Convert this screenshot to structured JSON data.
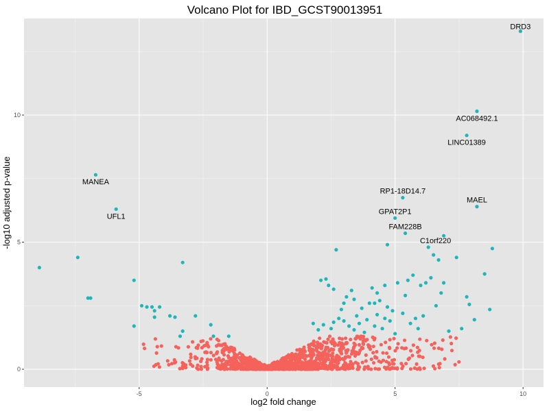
{
  "chart_data": {
    "type": "scatter",
    "title": "Volcano Plot for IBD_GCST90013951",
    "xlabel": "log2 fold change",
    "ylabel": "-log10 adjusted p-value",
    "xlim": [
      -9.5,
      10.8
    ],
    "ylim": [
      -0.7,
      13.8
    ],
    "xticks": [
      -5,
      0,
      5,
      10
    ],
    "yticks": [
      0,
      5,
      10
    ],
    "grid": true,
    "legend": "none",
    "colors": {
      "significant": "#1fb5b9",
      "not_significant": "#f4625b",
      "panel_background": "#e5e5e5",
      "grid_major": "#ffffff",
      "grid_minor": "#f2f2f2"
    },
    "labeled_points": [
      {
        "gene": "DRD3",
        "x": 9.9,
        "y": 13.3
      },
      {
        "gene": "AC068492.1",
        "x": 8.2,
        "y": 10.15
      },
      {
        "gene": "LINC01389",
        "x": 7.8,
        "y": 9.2
      },
      {
        "gene": "MANEA",
        "x": -6.7,
        "y": 7.65
      },
      {
        "gene": "UFL1",
        "x": -5.9,
        "y": 6.3
      },
      {
        "gene": "RP1-18D14.7",
        "x": 5.3,
        "y": 6.75
      },
      {
        "gene": "MAEL",
        "x": 8.2,
        "y": 6.4
      },
      {
        "gene": "GPAT2P1",
        "x": 5.0,
        "y": 5.95
      },
      {
        "gene": "FAM228B",
        "x": 5.4,
        "y": 5.35
      },
      {
        "gene": "C1orf220",
        "x": 6.9,
        "y": 5.25
      }
    ],
    "significant_points": [
      [
        -8.9,
        4.0
      ],
      [
        -7.4,
        4.4
      ],
      [
        -7.0,
        2.8
      ],
      [
        -6.9,
        2.8
      ],
      [
        -5.2,
        3.5
      ],
      [
        -5.2,
        1.7
      ],
      [
        -4.9,
        2.5
      ],
      [
        -4.7,
        2.45
      ],
      [
        -4.5,
        2.45
      ],
      [
        -4.4,
        2.3
      ],
      [
        -4.2,
        2.45
      ],
      [
        -4.4,
        2.05
      ],
      [
        -3.8,
        2.1
      ],
      [
        -3.6,
        2.05
      ],
      [
        -3.3,
        4.2
      ],
      [
        -3.3,
        1.5
      ],
      [
        -3.4,
        1.3
      ],
      [
        -2.8,
        2.1
      ],
      [
        -2.2,
        1.75
      ],
      [
        -2.1,
        1.3
      ],
      [
        -1.5,
        1.3
      ],
      [
        2.7,
        4.7
      ],
      [
        2.3,
        3.55
      ],
      [
        2.1,
        3.5
      ],
      [
        2.4,
        3.3
      ],
      [
        2.6,
        3.15
      ],
      [
        3.3,
        3.1
      ],
      [
        3.1,
        2.85
      ],
      [
        3.4,
        2.75
      ],
      [
        3.7,
        2.4
      ],
      [
        2.9,
        2.35
      ],
      [
        3.5,
        2.1
      ],
      [
        3.0,
        1.9
      ],
      [
        2.6,
        1.85
      ],
      [
        2.2,
        1.75
      ],
      [
        1.8,
        1.8
      ],
      [
        2.0,
        1.55
      ],
      [
        3.2,
        1.7
      ],
      [
        3.6,
        1.8
      ],
      [
        3.9,
        1.95
      ],
      [
        4.2,
        2.6
      ],
      [
        4.3,
        2.15
      ],
      [
        4.4,
        2.7
      ],
      [
        4.6,
        2.0
      ],
      [
        4.5,
        1.6
      ],
      [
        4.8,
        1.9
      ],
      [
        4.7,
        4.9
      ],
      [
        4.1,
        3.2
      ],
      [
        4.3,
        3.0
      ],
      [
        4.6,
        3.3
      ],
      [
        4.9,
        2.3
      ],
      [
        5.1,
        3.4
      ],
      [
        5.3,
        2.2
      ],
      [
        5.5,
        3.5
      ],
      [
        5.6,
        1.8
      ],
      [
        5.8,
        2.0
      ],
      [
        5.9,
        1.6
      ],
      [
        6.1,
        2.1
      ],
      [
        6.2,
        3.4
      ],
      [
        6.3,
        4.8
      ],
      [
        6.4,
        3.6
      ],
      [
        6.5,
        4.5
      ],
      [
        6.6,
        2.5
      ],
      [
        6.7,
        4.3
      ],
      [
        6.8,
        3.0
      ],
      [
        6.9,
        3.4
      ],
      [
        7.1,
        1.5
      ],
      [
        7.4,
        4.4
      ],
      [
        7.6,
        1.6
      ],
      [
        7.8,
        2.85
      ],
      [
        7.9,
        2.55
      ],
      [
        8.1,
        1.95
      ],
      [
        8.5,
        3.75
      ],
      [
        8.7,
        2.35
      ],
      [
        8.8,
        4.75
      ],
      [
        4.0,
        2.6
      ],
      [
        3.8,
        1.45
      ],
      [
        2.5,
        1.6
      ],
      [
        4.2,
        1.7
      ],
      [
        5.0,
        1.4
      ],
      [
        2.8,
        2.0
      ],
      [
        3.4,
        1.55
      ],
      [
        4.7,
        2.45
      ],
      [
        5.7,
        3.7
      ],
      [
        6.0,
        3.3
      ],
      [
        5.4,
        2.9
      ],
      [
        3.0,
        2.6
      ]
    ],
    "insignificant_bands": [
      {
        "x": [
          -5.0,
          -4.0
        ],
        "ymax": 1.2,
        "count": 10
      },
      {
        "x": [
          -4.0,
          -3.0
        ],
        "ymax": 1.1,
        "count": 18
      },
      {
        "x": [
          -3.0,
          -2.0
        ],
        "ymax": 1.2,
        "count": 40
      },
      {
        "x": [
          -2.0,
          -1.0
        ],
        "ymax": 1.25,
        "count": 120
      },
      {
        "x": [
          -1.0,
          0.0
        ],
        "ymax": 1.3,
        "count": 220
      },
      {
        "x": [
          0.0,
          1.0
        ],
        "ymax": 1.3,
        "count": 260
      },
      {
        "x": [
          1.0,
          2.0
        ],
        "ymax": 1.3,
        "count": 200
      },
      {
        "x": [
          2.0,
          3.0
        ],
        "ymax": 1.3,
        "count": 150
      },
      {
        "x": [
          3.0,
          4.0
        ],
        "ymax": 1.3,
        "count": 80
      },
      {
        "x": [
          4.0,
          5.0
        ],
        "ymax": 1.3,
        "count": 45
      },
      {
        "x": [
          5.0,
          6.0
        ],
        "ymax": 1.2,
        "count": 30
      },
      {
        "x": [
          6.0,
          7.0
        ],
        "ymax": 1.2,
        "count": 15
      },
      {
        "x": [
          7.0,
          8.0
        ],
        "ymax": 1.3,
        "count": 6
      }
    ]
  }
}
